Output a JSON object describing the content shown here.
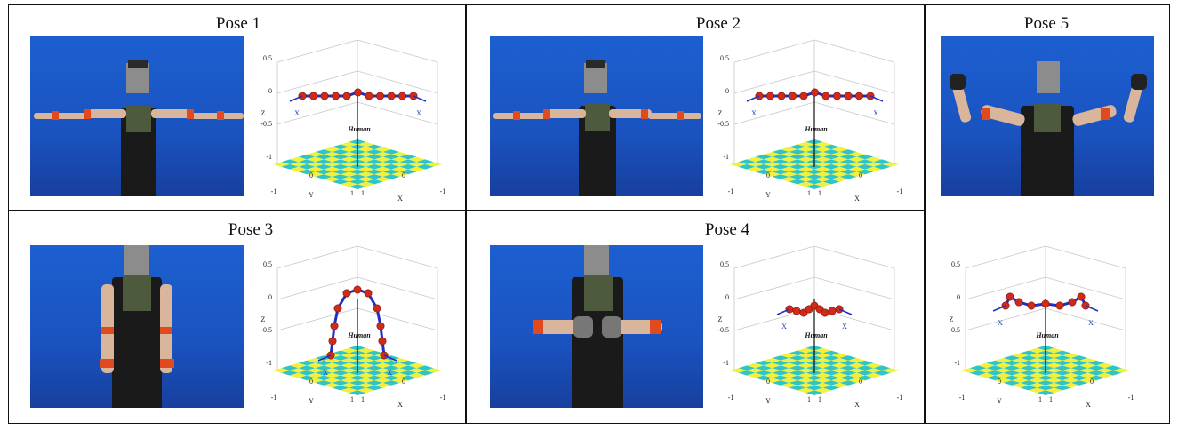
{
  "panels": [
    {
      "id": "pose1",
      "title": "Pose 1",
      "arms": "horizontal"
    },
    {
      "id": "pose2",
      "title": "Pose 2",
      "arms": "horizontal"
    },
    {
      "id": "pose5",
      "title": "Pose 5",
      "arms": "raised-elbows"
    },
    {
      "id": "pose3",
      "title": "Pose 3",
      "arms": "down"
    },
    {
      "id": "pose4",
      "title": "Pose 4",
      "arms": "fists-front"
    }
  ],
  "plot_labels": {
    "z_axis": "Z",
    "x_axis": "X",
    "y_axis": "Y",
    "z_ticks": [
      "0.5",
      "0",
      "-0.5",
      "-1"
    ],
    "floor_ticks_left": [
      "-1",
      "0",
      "1"
    ],
    "floor_ticks_right": [
      "1",
      "0",
      "-1"
    ],
    "human_label": "Human"
  },
  "colors": {
    "background": "#1a53c0",
    "joint": "#d02a1a",
    "link": "#2030c0",
    "floor_a": "#f2f03a",
    "floor_b": "#2ec4c8"
  }
}
